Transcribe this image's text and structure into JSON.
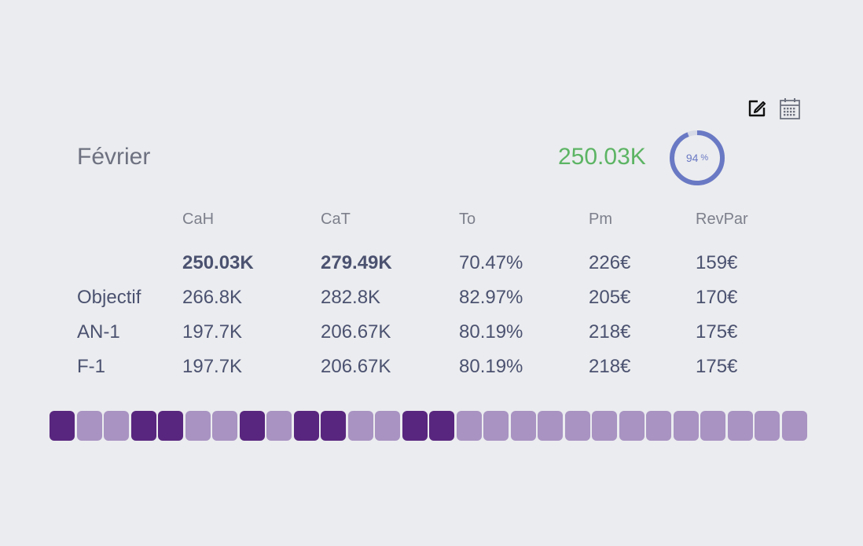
{
  "month": "Février",
  "total": "250.03K",
  "gauge": {
    "value": "94",
    "unit": "%",
    "fraction": 0.94,
    "color": "#6a79c4"
  },
  "icons": {
    "edit": "edit-icon",
    "calendar": "calendar-icon"
  },
  "columns": [
    "CaH",
    "CaT",
    "To",
    "Pm",
    "RevPar"
  ],
  "rows": [
    {
      "label": "",
      "bold": true,
      "values": [
        "250.03K",
        "279.49K",
        "70.47%",
        "226€",
        "159€"
      ]
    },
    {
      "label": "Objectif",
      "bold": false,
      "values": [
        "266.8K",
        "282.8K",
        "82.97%",
        "205€",
        "170€"
      ]
    },
    {
      "label": "AN-1",
      "bold": false,
      "values": [
        "197.7K",
        "206.67K",
        "80.19%",
        "218€",
        "175€"
      ]
    },
    {
      "label": "F-1",
      "bold": false,
      "values": [
        "197.7K",
        "206.67K",
        "80.19%",
        "218€",
        "175€"
      ]
    }
  ],
  "days": [
    "dark",
    "light",
    "light",
    "dark",
    "dark",
    "light",
    "light",
    "dark",
    "light",
    "dark",
    "dark",
    "light",
    "light",
    "dark",
    "dark",
    "light",
    "light",
    "light",
    "light",
    "light",
    "light",
    "light",
    "light",
    "light",
    "light",
    "light",
    "light",
    "light"
  ],
  "colors": {
    "dark": "#58267e",
    "light": "#a893c2",
    "total": "#5cb464"
  }
}
